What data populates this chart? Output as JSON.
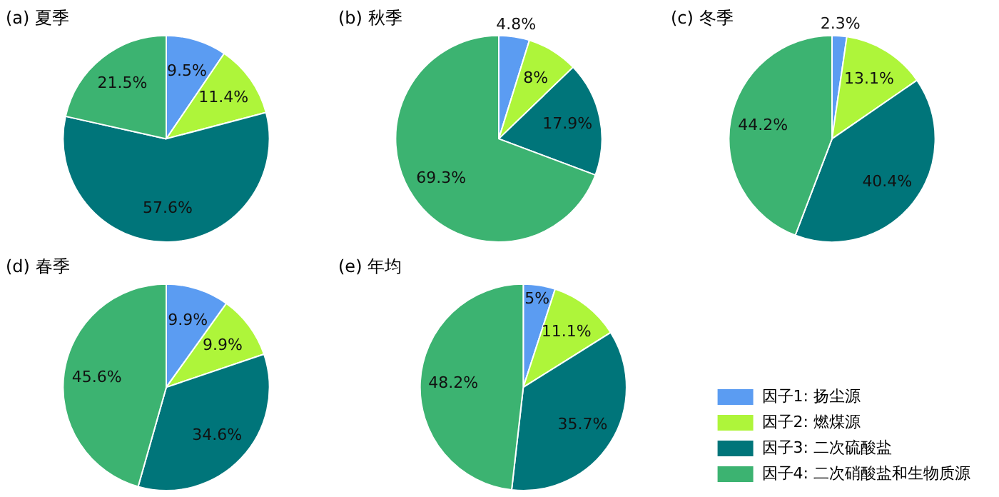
{
  "chart_data": [
    {
      "type": "pie",
      "title": "(a) 夏季",
      "categories": [
        null,
        null,
        null,
        null
      ],
      "values": [
        9.5,
        11.4,
        57.6,
        21.5
      ],
      "colors": [
        "#5b9cf2",
        "#aef53a",
        "#00757a",
        "#3cb371"
      ],
      "value_labels": [
        "9.5%",
        "11.4%",
        "57.6%",
        "21.5%"
      ]
    },
    {
      "type": "pie",
      "title": "(b) 秋季",
      "categories": [
        null,
        null,
        null,
        null
      ],
      "values": [
        4.8,
        8,
        17.9,
        69.3
      ],
      "colors": [
        "#5b9cf2",
        "#aef53a",
        "#00757a",
        "#3cb371"
      ],
      "value_labels": [
        "4.8%",
        "8%",
        "17.9%",
        "69.3%"
      ]
    },
    {
      "type": "pie",
      "title": "(c) 冬季",
      "categories": [
        null,
        null,
        null,
        null
      ],
      "values": [
        2.3,
        13.1,
        40.4,
        44.2
      ],
      "colors": [
        "#5b9cf2",
        "#aef53a",
        "#00757a",
        "#3cb371"
      ],
      "value_labels": [
        "2.3%",
        "13.1%",
        "40.4%",
        "44.2%"
      ]
    },
    {
      "type": "pie",
      "title": "(d) 春季",
      "categories": [
        null,
        null,
        null,
        null
      ],
      "values": [
        9.9,
        9.9,
        34.6,
        45.6
      ],
      "colors": [
        "#5b9cf2",
        "#aef53a",
        "#00757a",
        "#3cb371"
      ],
      "value_labels": [
        "9.9%",
        "9.9%",
        "34.6%",
        "45.6%"
      ]
    },
    {
      "type": "pie",
      "title": "(e) 年均",
      "categories": [
        "因子1: 扬尘源",
        "因子2: 燃煤源",
        "因子3: 二次硫酸盐",
        "因子4: 二次硝酸盐和生物质源"
      ],
      "values": [
        5,
        11.1,
        35.7,
        48.2
      ],
      "colors": [
        "#5b9cf2",
        "#aef53a",
        "#00757a",
        "#3cb371"
      ],
      "value_labels": [
        "5%",
        "11.1%",
        "35.7%",
        "48.2%"
      ],
      "legend": "right"
    }
  ]
}
